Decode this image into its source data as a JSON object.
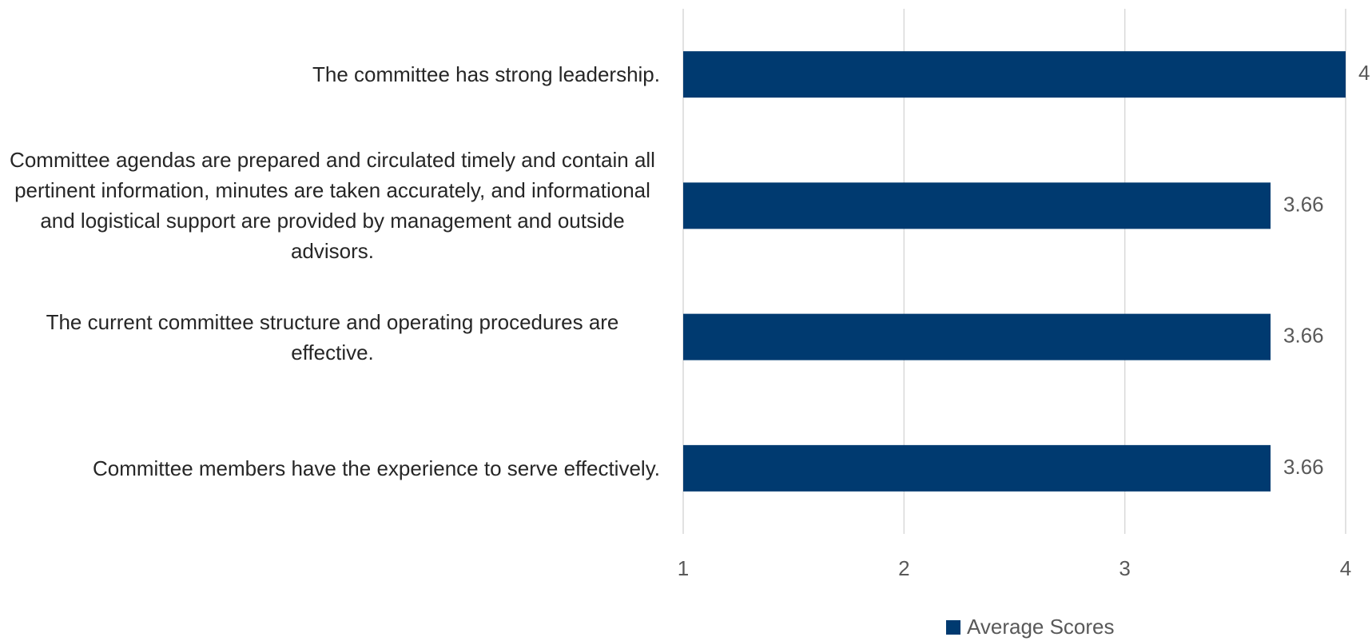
{
  "chart_data": {
    "type": "hbar",
    "categories": [
      "The committee has strong leadership.",
      "Committee agendas are prepared and circulated timely and contain all pertinent information, minutes are taken accurately, and informational and logistical support are provided by management and outside advisors.",
      "The current committee structure and operating procedures are effective.",
      "Committee members have the experience to serve effectively."
    ],
    "series": [
      {
        "name": "Average Scores",
        "color": "#003a70",
        "values": [
          4,
          3.66,
          3.66,
          3.66
        ]
      }
    ],
    "xlim": [
      1,
      4
    ],
    "xticks": [
      1,
      2,
      3,
      4
    ],
    "grid": true,
    "legend": "bottom"
  }
}
